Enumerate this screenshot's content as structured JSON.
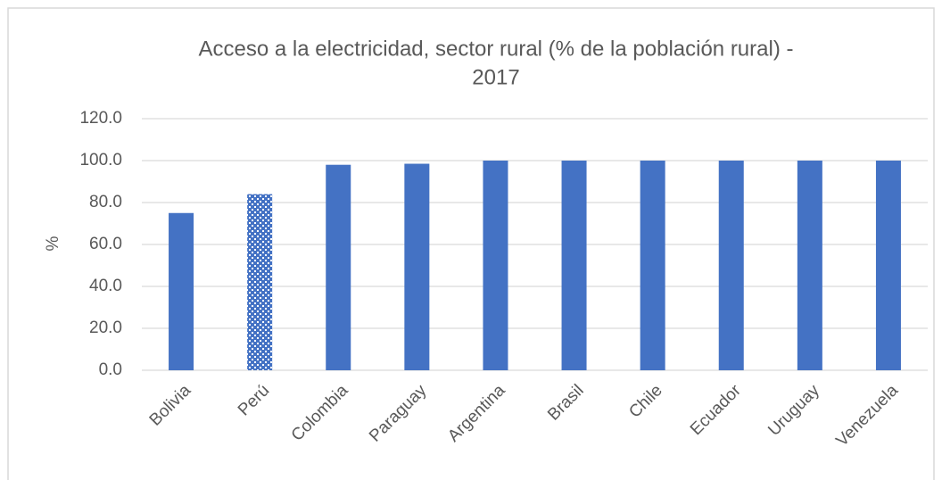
{
  "chart_data": {
    "type": "bar",
    "title": [
      "Acceso a la electricidad, sector rural (% de la población rural) -",
      "2017"
    ],
    "y_label": "%",
    "categories": [
      "Bolivia",
      "Perú",
      "Colombia",
      "Paraguay",
      "Argentina",
      "Brasil",
      "Chile",
      "Ecuador",
      "Uruguay",
      "Venezuela"
    ],
    "values": [
      75,
      84,
      98,
      98.5,
      100,
      100,
      100,
      100,
      100,
      100
    ],
    "bar_styles": [
      "solid",
      "pattern",
      "solid",
      "solid",
      "solid",
      "solid",
      "solid",
      "solid",
      "solid",
      "solid"
    ],
    "color": "#4472c4",
    "ylim": [
      0,
      120
    ],
    "yticks": [
      {
        "value": 0,
        "label": "0.0"
      },
      {
        "value": 20,
        "label": "20.0"
      },
      {
        "value": 40,
        "label": "40.0"
      },
      {
        "value": 60,
        "label": "60.0"
      },
      {
        "value": 80,
        "label": "80.0"
      },
      {
        "value": 100,
        "label": "100.0"
      },
      {
        "value": 120,
        "label": "120.0"
      }
    ],
    "grid": true
  }
}
